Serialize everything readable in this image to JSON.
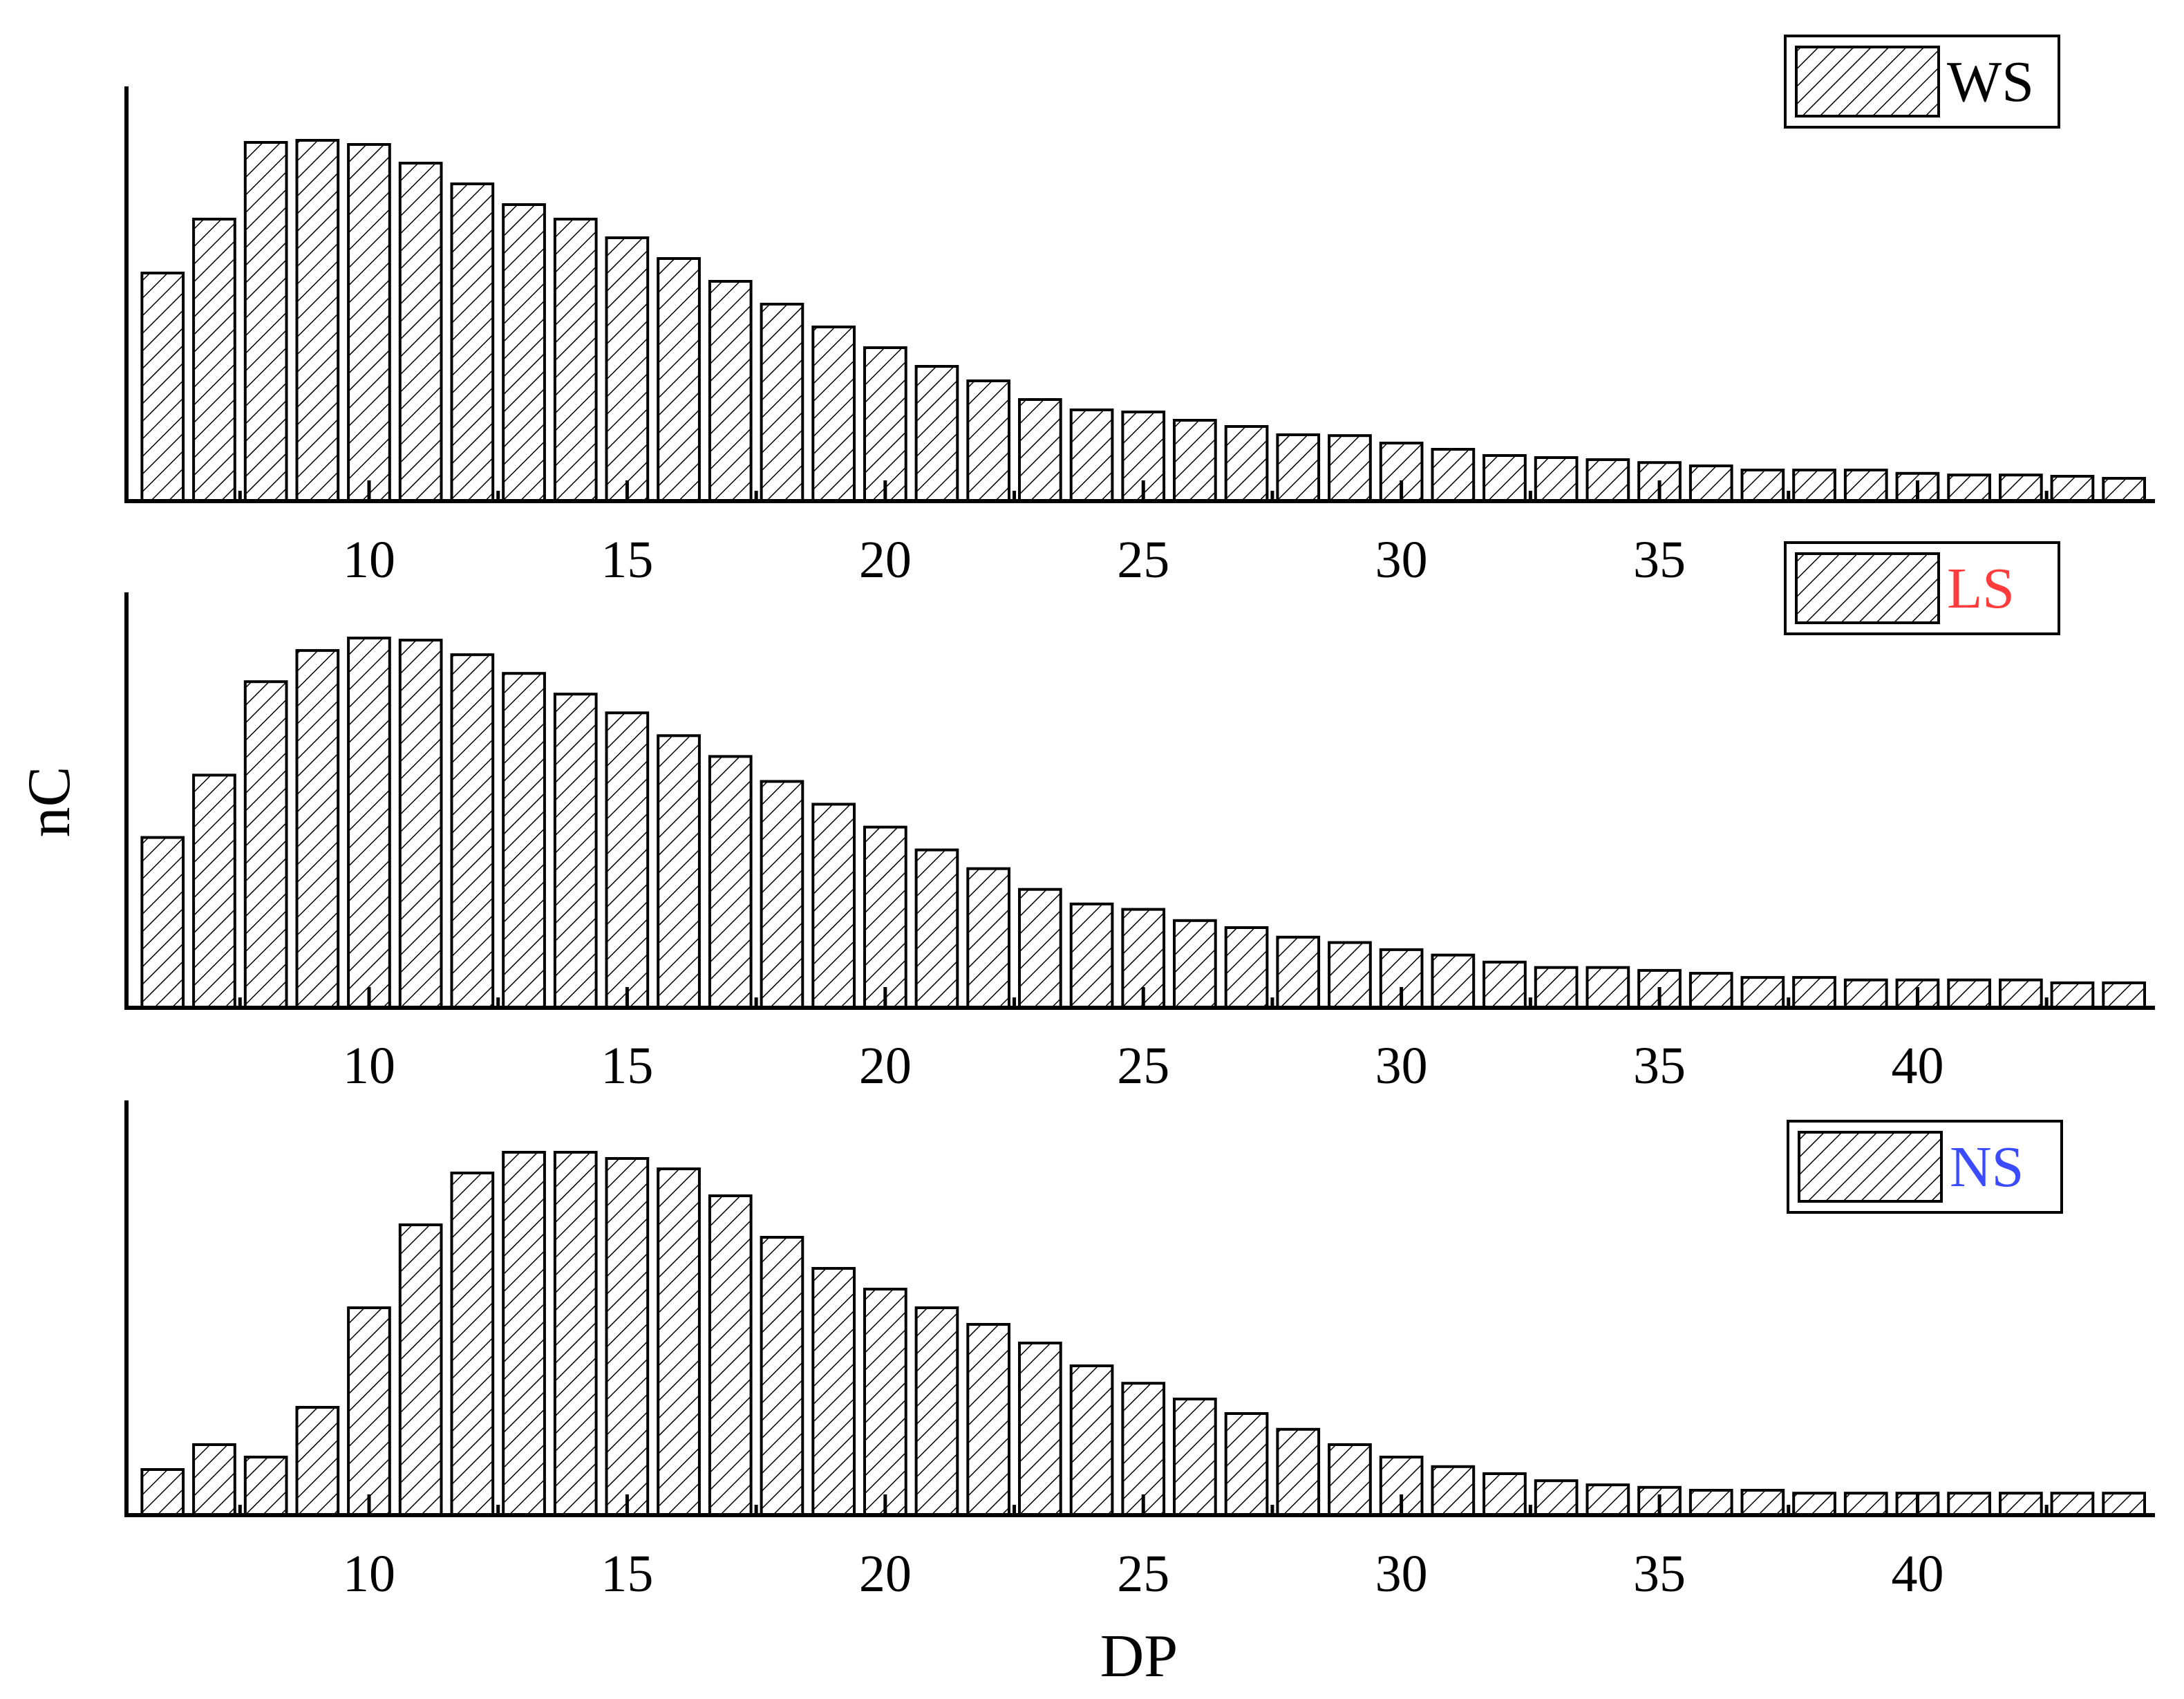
{
  "chart_data": {
    "type": "bar",
    "xlabel": "DP",
    "ylabel": "nC",
    "x_ticks": [
      "10",
      "15",
      "20",
      "25",
      "30",
      "35",
      "40"
    ],
    "x_tick_values": [
      10,
      15,
      20,
      25,
      30,
      35,
      40
    ],
    "x_minor_ticks": [
      7.5,
      12.5,
      17.5,
      22.5,
      27.5,
      32.5,
      37.5,
      42.5
    ],
    "xlim": [
      5.3,
      44.6
    ],
    "ylim": [
      0,
      1.0
    ],
    "y_tick_labels_shown": false,
    "fill_pattern": "diagonal-hatch",
    "categories": [
      6,
      7,
      8,
      9,
      10,
      11,
      12,
      13,
      14,
      15,
      16,
      17,
      18,
      19,
      20,
      21,
      22,
      23,
      24,
      25,
      26,
      27,
      28,
      29,
      30,
      31,
      32,
      33,
      34,
      35,
      36,
      37,
      38,
      39,
      40,
      41,
      42,
      43,
      44
    ],
    "panels": [
      {
        "legend": "WS",
        "legend_color": "#000000",
        "legend_position": "top-right",
        "values": [
          0.55,
          0.68,
          0.865,
          0.87,
          0.86,
          0.815,
          0.765,
          0.715,
          0.68,
          0.635,
          0.585,
          0.53,
          0.475,
          0.42,
          0.37,
          0.325,
          0.29,
          0.245,
          0.22,
          0.215,
          0.195,
          0.18,
          0.16,
          0.158,
          0.14,
          0.125,
          0.11,
          0.105,
          0.1,
          0.093,
          0.085,
          0.075,
          0.075,
          0.075,
          0.067,
          0.063,
          0.063,
          0.06,
          0.055
        ]
      },
      {
        "legend": "LS",
        "legend_color": "#ff3b3b",
        "legend_position": "top-right",
        "values": [
          0.41,
          0.56,
          0.785,
          0.86,
          0.89,
          0.885,
          0.85,
          0.805,
          0.755,
          0.71,
          0.655,
          0.605,
          0.545,
          0.49,
          0.435,
          0.38,
          0.335,
          0.285,
          0.25,
          0.237,
          0.21,
          0.193,
          0.17,
          0.157,
          0.14,
          0.127,
          0.11,
          0.097,
          0.097,
          0.09,
          0.083,
          0.073,
          0.073,
          0.067,
          0.067,
          0.067,
          0.067,
          0.06,
          0.06
        ]
      },
      {
        "legend": "NS",
        "legend_color": "#3b4bff",
        "legend_position": "top-right",
        "values": [
          0.11,
          0.17,
          0.14,
          0.26,
          0.5,
          0.7,
          0.825,
          0.875,
          0.875,
          0.86,
          0.835,
          0.77,
          0.67,
          0.595,
          0.545,
          0.5,
          0.46,
          0.415,
          0.36,
          0.318,
          0.28,
          0.245,
          0.207,
          0.17,
          0.14,
          0.117,
          0.1,
          0.083,
          0.073,
          0.067,
          0.06,
          0.06,
          0.053,
          0.053,
          0.053,
          0.053,
          0.053,
          0.053,
          0.053
        ]
      }
    ]
  }
}
